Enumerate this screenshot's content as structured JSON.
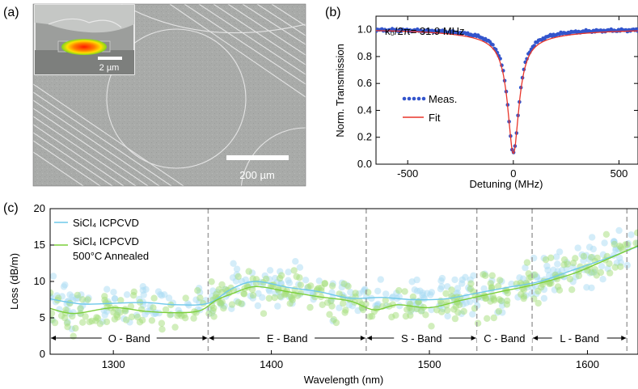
{
  "panel_a": {
    "label": "(a)",
    "scale_bar_label": "200 µm",
    "inset_scale_bar_label": "2 µm"
  },
  "colors": {
    "measured": "#3355cc",
    "fit": "#e8352a",
    "sicl4": "#6fc8ea",
    "annealed": "#7ccf3a",
    "sicl4_scatter": "#a9dcf3",
    "annealed_scatter": "#a3de7a",
    "band_dash": "#a0a0a0"
  },
  "chart_data": [
    {
      "type": "line",
      "panel": "(b)",
      "title": "",
      "annotation": "κ₀/2π= 31.9 MHz",
      "xlabel": "Detuning (MHz)",
      "ylabel": "Norm. Transmission",
      "xlim": [
        -650,
        590
      ],
      "ylim": [
        0,
        1.1
      ],
      "xticks": [
        -500,
        0,
        500
      ],
      "xtick_labels": [
        "-500",
        "0",
        "500"
      ],
      "yticks": [
        0,
        0.2,
        0.4,
        0.6,
        0.8,
        1.0
      ],
      "ytick_labels": [
        "0.0",
        "0.2",
        "0.4",
        "0.6",
        "0.8",
        "1.0"
      ],
      "legend": [
        "Meas.",
        "Fit"
      ],
      "legend_position": "center-left",
      "series": [
        {
          "name": "Meas.",
          "style": "dots",
          "center": 0,
          "baseline": 1.0,
          "min": 0.08,
          "halfwidth": 32,
          "shoulder_width": 140,
          "shoulder_depth": 0.06
        },
        {
          "name": "Fit",
          "style": "line",
          "center": 0,
          "baseline": 1.0,
          "min": 0.08,
          "halfwidth": 32,
          "shoulder_width": 230,
          "shoulder_depth": 0.085
        }
      ]
    },
    {
      "type": "scatter",
      "panel": "(c)",
      "xlabel": "Wavelength (nm)",
      "ylabel": "Loss (dB/m)",
      "xlim": [
        1260,
        1632
      ],
      "ylim": [
        0,
        20
      ],
      "xticks": [
        1300,
        1400,
        1500,
        1600
      ],
      "xtick_labels": [
        "1300",
        "1400",
        "1500",
        "1600"
      ],
      "yticks": [
        0,
        5,
        10,
        15,
        20
      ],
      "ytick_labels": [
        "0",
        "5",
        "10",
        "15",
        "20"
      ],
      "legend": [
        "SiCl₄ ICPCVD",
        "SiCl₄ ICPCVD",
        "500°C Annealed"
      ],
      "legend_position": "top-left",
      "band_boundaries": [
        1360,
        1460,
        1530,
        1565,
        1625
      ],
      "bands": [
        {
          "name": "O - Band",
          "start": 1260,
          "end": 1360
        },
        {
          "name": "E - Band",
          "start": 1360,
          "end": 1460
        },
        {
          "name": "S - Band",
          "start": 1460,
          "end": 1530
        },
        {
          "name": "C - Band",
          "start": 1530,
          "end": 1565
        },
        {
          "name": "L - Band",
          "start": 1565,
          "end": 1625
        }
      ],
      "series": [
        {
          "name": "SiCl₄ ICPCVD",
          "x": [
            1260,
            1280,
            1300,
            1320,
            1340,
            1360,
            1375,
            1390,
            1410,
            1430,
            1450,
            1470,
            1490,
            1510,
            1530,
            1550,
            1570,
            1590,
            1610,
            1632
          ],
          "y": [
            7.6,
            6.9,
            7.0,
            7.1,
            6.8,
            7.0,
            9.0,
            10.0,
            9.2,
            8.6,
            7.7,
            7.8,
            7.5,
            7.6,
            8.4,
            9.2,
            10.0,
            11.5,
            13.0,
            14.8
          ]
        },
        {
          "name": "SiCl₄ ICPCVD 500°C Annealed",
          "x": [
            1260,
            1275,
            1300,
            1320,
            1340,
            1355,
            1365,
            1375,
            1390,
            1410,
            1430,
            1450,
            1465,
            1480,
            1500,
            1520,
            1545,
            1565,
            1590,
            1610,
            1632
          ],
          "y": [
            6.3,
            5.6,
            6.4,
            5.9,
            5.7,
            6.0,
            7.4,
            8.3,
            9.3,
            8.6,
            7.9,
            7.3,
            6.1,
            6.8,
            6.4,
            7.4,
            8.6,
            9.5,
            11.0,
            12.8,
            14.9
          ]
        }
      ]
    }
  ]
}
